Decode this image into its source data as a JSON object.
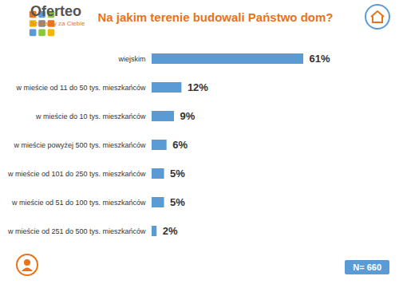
{
  "chart_data": {
    "type": "bar",
    "orientation": "horizontal",
    "title": "Na jakim terenie budowali Państwo dom?",
    "brand": "Oferteo",
    "brand_tagline": "Szukamy za Ciebie",
    "note": "N= 660",
    "categories": [
      "wiejskim",
      "w mieście od 11 do 50 tys. mieszkańców",
      "w mieście do 10 tys. mieszkańców",
      "w mieście powyżej 500 tys. mieszkańców",
      "w mieście od 101 do 250 tys. mieszkańców",
      "w mieście od 51 do 100 tys. mieszkańców",
      "w mieście od 251 do 500 tys. mieszkańców"
    ],
    "values": [
      61,
      12,
      9,
      6,
      5,
      5,
      2
    ],
    "value_labels": [
      "61%",
      "12%",
      "9%",
      "6%",
      "5%",
      "5%",
      "2%"
    ],
    "color": "#5b9bd5",
    "xlim": [
      0,
      61
    ],
    "data_labels": true,
    "tick_labels": "y",
    "grid": false
  }
}
